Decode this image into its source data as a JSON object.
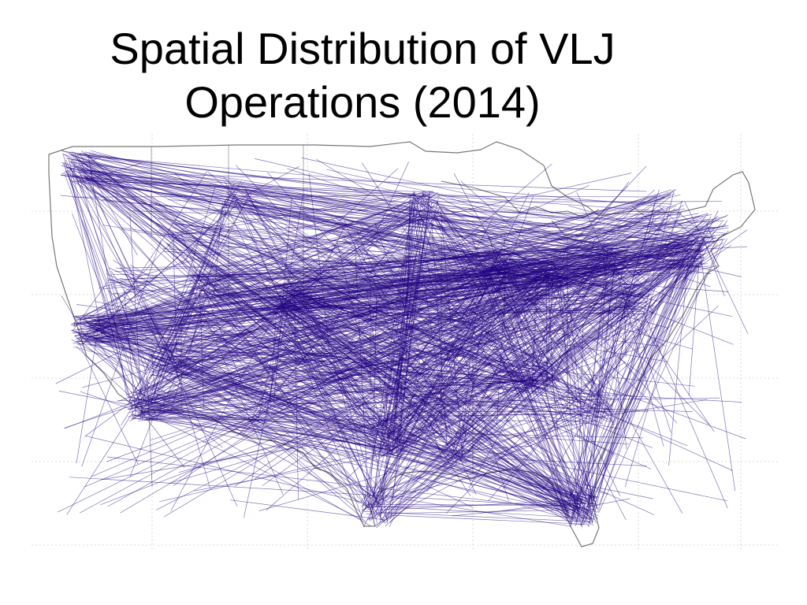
{
  "slide": {
    "title_line1": "Spatial Distribution of VLJ",
    "title_line2": "Operations (2014)"
  },
  "map": {
    "region": "Contiguous United States",
    "layer": "flight routes",
    "route_color": "#1f007f",
    "outline_color": "#777777",
    "grid_color": "#cfcfcf",
    "gridlines": true
  }
}
